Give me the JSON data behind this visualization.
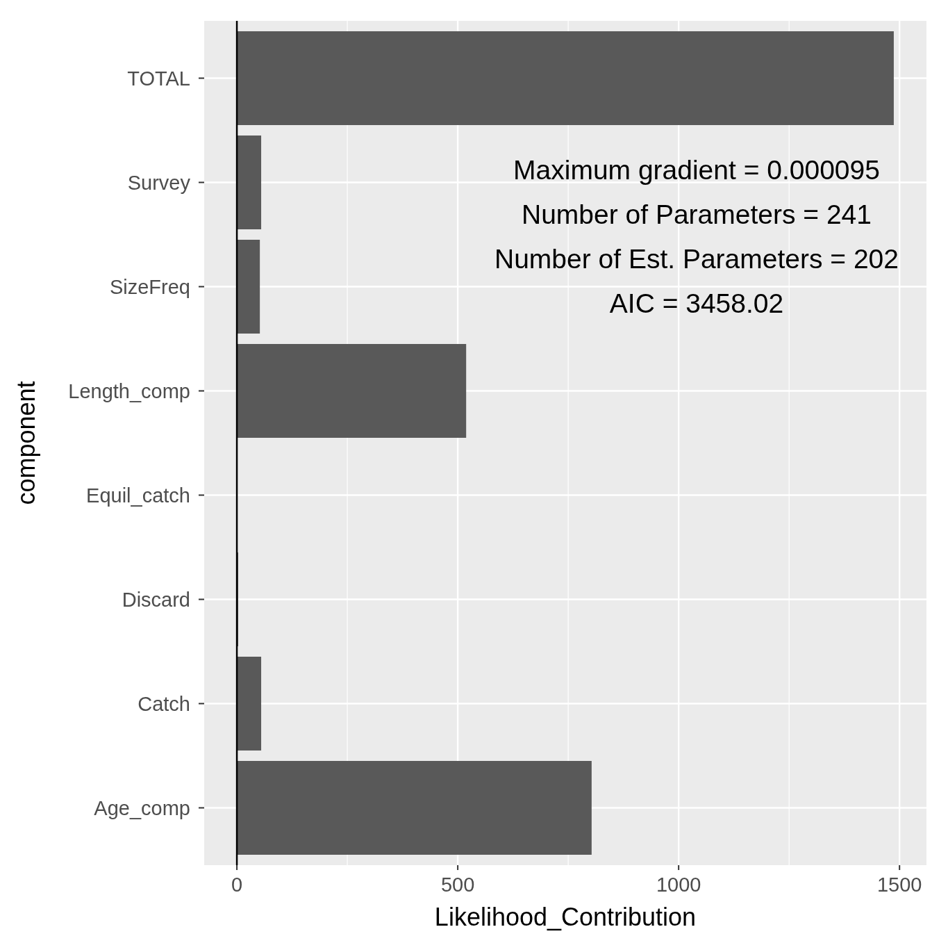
{
  "chart_data": {
    "type": "bar",
    "orientation": "horizontal",
    "xlabel": "Likelihood_Contribution",
    "ylabel": "component",
    "categories": [
      "TOTAL",
      "Survey",
      "SizeFreq",
      "Length_comp",
      "Equil_catch",
      "Discard",
      "Catch",
      "Age_comp"
    ],
    "values": [
      1487,
      55,
      52,
      519,
      0,
      3,
      55,
      803
    ],
    "color": "#595959",
    "xlim": [
      -74,
      1561
    ],
    "xticks": [
      0,
      {
        "value": 250,
        "label": null
      },
      500,
      {
        "value": 750,
        "label": null
      },
      1000,
      {
        "value": 1250,
        "label": null
      },
      1500
    ],
    "grid": true,
    "ref_lines": [
      {
        "axis": "x",
        "value": 0,
        "label": null,
        "color": "#000000"
      }
    ],
    "annotations": [
      "Maximum gradient = 0.000095",
      "Number of Parameters = 241",
      "Number of Est. Parameters = 202",
      "AIC = 3458.02"
    ]
  }
}
